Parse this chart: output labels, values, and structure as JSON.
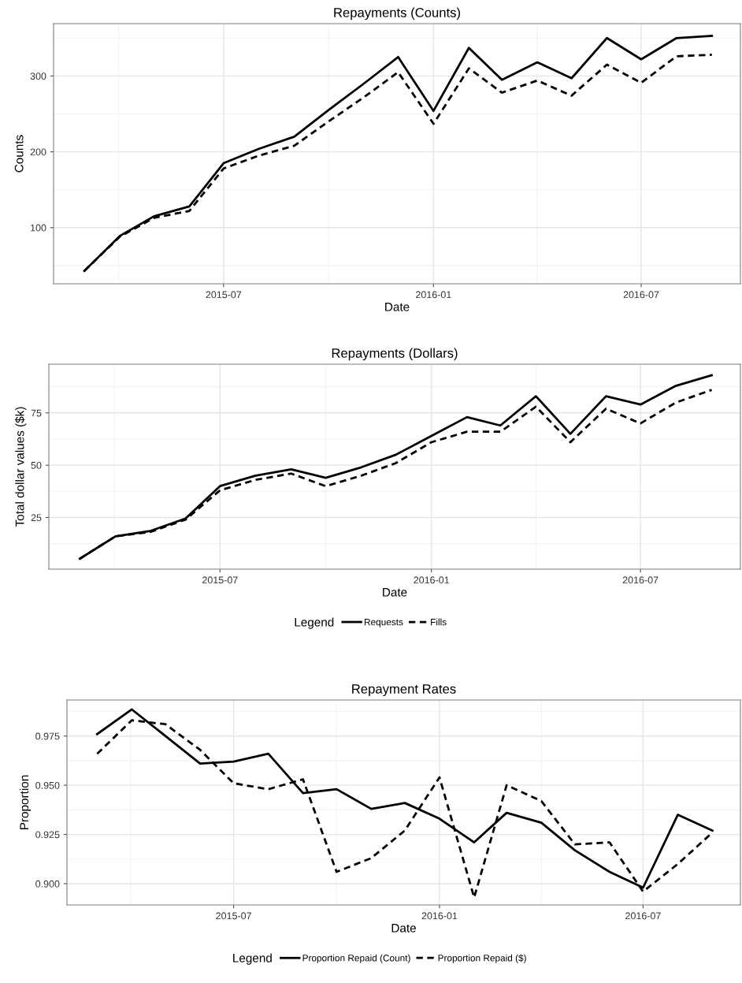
{
  "chart_data": [
    {
      "type": "line",
      "title": "Repayments (Counts)",
      "xlabel": "Date",
      "ylabel": "Counts",
      "grid": true,
      "legend": false,
      "x": [
        "2015-03",
        "2015-04",
        "2015-05",
        "2015-06",
        "2015-07",
        "2015-08",
        "2015-09",
        "2015-10",
        "2015-11",
        "2015-12",
        "2016-01",
        "2016-02",
        "2016-03",
        "2016-04",
        "2016-05",
        "2016-06",
        "2016-07",
        "2016-08",
        "2016-09"
      ],
      "xlim": [
        "2015-02-02",
        "2016-09-26"
      ],
      "xticks": [
        "2015-07",
        "2016-01",
        "2016-07"
      ],
      "ylim": [
        26,
        369
      ],
      "yticks": [
        100,
        200,
        300
      ],
      "series": [
        {
          "color": "#000000",
          "line_style": "solid",
          "values": [
            43,
            89,
            115,
            128,
            185,
            204,
            220,
            255,
            290,
            325,
            254,
            337,
            295,
            318,
            297,
            350,
            322,
            350,
            353
          ]
        },
        {
          "color": "#000000",
          "line_style": "dashed",
          "values": [
            43,
            88,
            113,
            122,
            178,
            195,
            208,
            240,
            272,
            305,
            237,
            310,
            278,
            294,
            274,
            315,
            291,
            326,
            328
          ]
        }
      ]
    },
    {
      "type": "line",
      "title": "Repayments (Dollars)",
      "xlabel": "Date",
      "ylabel": "Total dollar values ($k)",
      "grid": true,
      "legend": "bottom",
      "legend_title": "Legend",
      "x": [
        "2015-03",
        "2015-04",
        "2015-05",
        "2015-06",
        "2015-07",
        "2015-08",
        "2015-09",
        "2015-10",
        "2015-11",
        "2015-12",
        "2016-01",
        "2016-02",
        "2016-03",
        "2016-04",
        "2016-05",
        "2016-06",
        "2016-07",
        "2016-08",
        "2016-09"
      ],
      "xlim": [
        "2015-02-02",
        "2016-09-26"
      ],
      "xticks": [
        "2015-07",
        "2016-01",
        "2016-07"
      ],
      "ylim": [
        0.3,
        98.3
      ],
      "yticks": [
        25,
        50,
        75
      ],
      "series": [
        {
          "name": "Requests",
          "color": "#000000",
          "line_style": "solid",
          "values": [
            5.3,
            16,
            18.5,
            24.5,
            40,
            45,
            48,
            44,
            49,
            55,
            64,
            73,
            69,
            83,
            65,
            83,
            79,
            88,
            93
          ]
        },
        {
          "name": "Fills",
          "color": "#000000",
          "line_style": "dashed",
          "values": [
            5.3,
            16,
            18,
            24,
            38,
            43,
            46,
            40,
            45,
            51,
            61,
            66,
            66,
            78,
            61,
            77,
            70,
            80,
            86
          ]
        }
      ]
    },
    {
      "type": "line",
      "title": "Repayment Rates",
      "xlabel": "Date",
      "ylabel": "Proportion",
      "grid": true,
      "legend": "bottom",
      "legend_title": "Legend",
      "x": [
        "2015-03",
        "2015-04",
        "2015-05",
        "2015-06",
        "2015-07",
        "2015-08",
        "2015-09",
        "2015-10",
        "2015-11",
        "2015-12",
        "2016-01",
        "2016-02",
        "2016-03",
        "2016-04",
        "2016-05",
        "2016-06",
        "2016-07",
        "2016-08",
        "2016-09"
      ],
      "xlim": [
        "2015-02-02",
        "2016-09-26"
      ],
      "xticks": [
        "2015-07",
        "2016-01",
        "2016-07"
      ],
      "ylim": [
        0.8892,
        0.9933
      ],
      "yticks": [
        {
          "value": 0.9,
          "label": "0.900"
        },
        {
          "value": 0.925,
          "label": "0.925"
        },
        {
          "value": 0.95,
          "label": "0.950"
        },
        {
          "value": 0.975,
          "label": "0.975"
        }
      ],
      "series": [
        {
          "name": "Proportion Repaid (Count)",
          "color": "#000000",
          "line_style": "solid",
          "values": [
            0.976,
            0.9885,
            0.975,
            0.961,
            0.962,
            0.966,
            0.946,
            0.948,
            0.938,
            0.941,
            0.933,
            0.921,
            0.936,
            0.931,
            0.917,
            0.906,
            0.898,
            0.935,
            0.927
          ]
        },
        {
          "name": "Proportion Repaid ($)",
          "color": "#000000",
          "line_style": "dashed",
          "values": [
            0.966,
            0.983,
            0.981,
            0.968,
            0.951,
            0.948,
            0.953,
            0.906,
            0.913,
            0.927,
            0.954,
            0.893,
            0.95,
            0.942,
            0.92,
            0.921,
            0.896,
            0.91,
            0.926
          ]
        }
      ]
    }
  ]
}
